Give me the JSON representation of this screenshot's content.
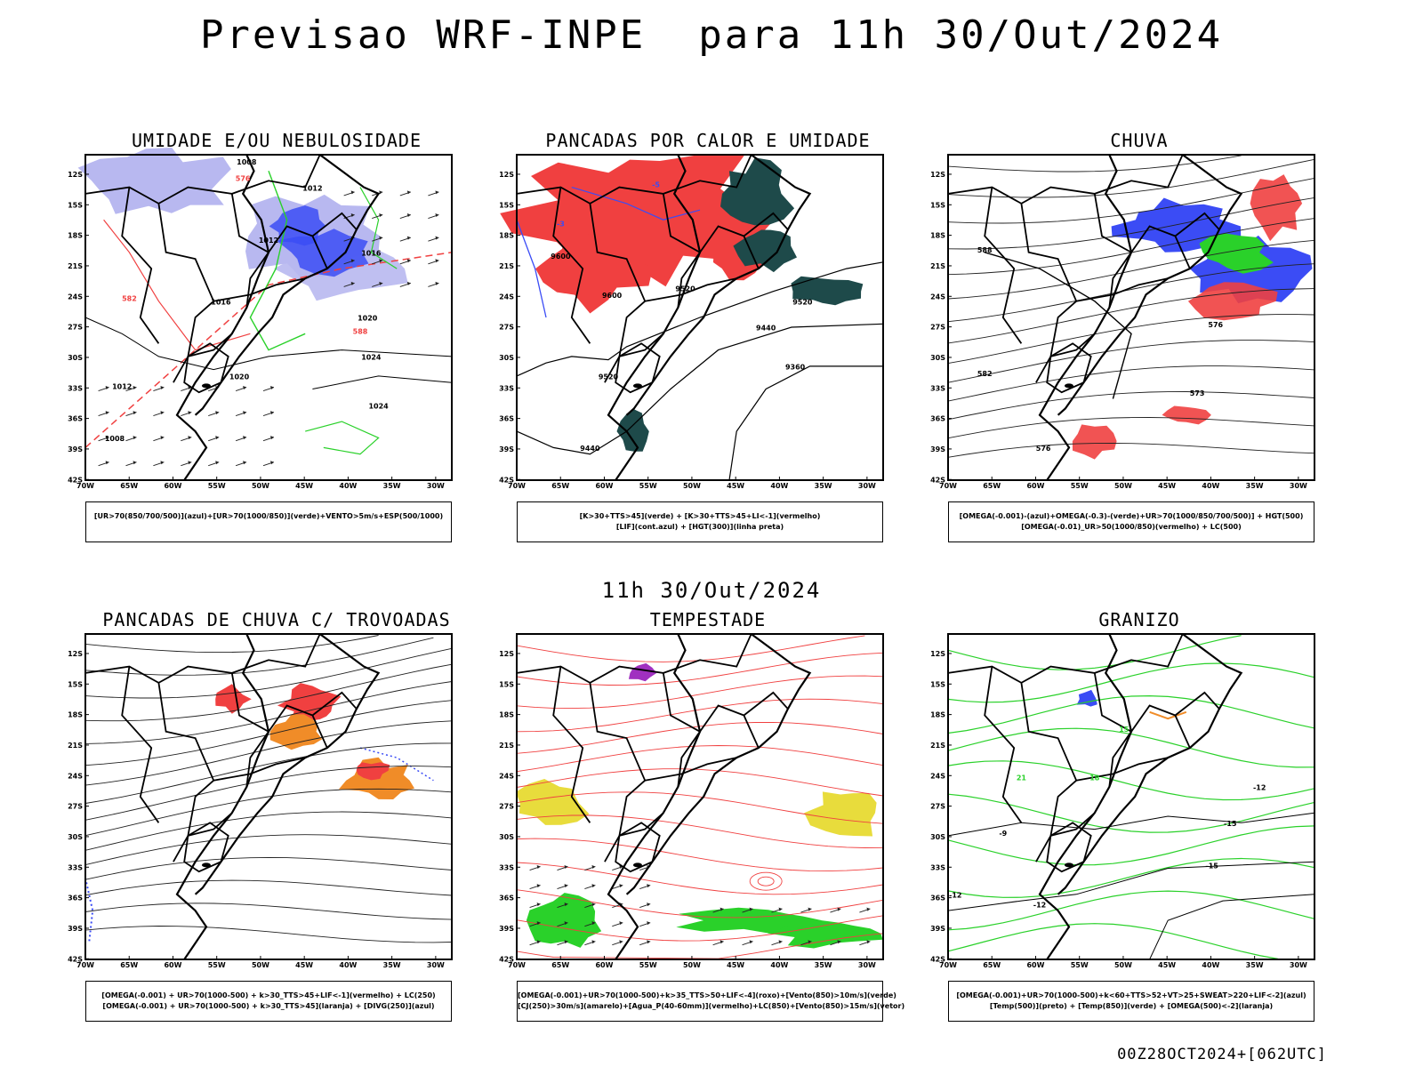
{
  "title": "Previsao WRF-INPE  para 11h 30/Out/2024",
  "mid_title": "11h 30/Out/2024",
  "footer": "00Z28OCT2024+[062UTC]",
  "axes": {
    "lat_labels": [
      "12S",
      "15S",
      "18S",
      "21S",
      "24S",
      "27S",
      "30S",
      "33S",
      "36S",
      "39S",
      "42S"
    ],
    "lon_labels": [
      "70W",
      "65W",
      "60W",
      "55W",
      "50W",
      "45W",
      "40W",
      "35W",
      "30W"
    ]
  },
  "colors": {
    "blue": "#3b4cf5",
    "lavender": "#b8b8f0",
    "green": "#2ad12a",
    "red": "#f04040",
    "darkteal": "#1e4a4a",
    "orange": "#f08c28",
    "yellow": "#e8dc3c",
    "purple": "#a030c0"
  },
  "panels": [
    {
      "title": "UMIDADE E/OU NEBULOSIDADE",
      "legend": [
        "[UR>70(850/700/500)](azul)+[UR>70(1000/850)](verde)+VENTO>5m/s+ESP(500/1000)"
      ],
      "labels": [
        "1008",
        "1012",
        "1012",
        "1016",
        "1016",
        "1020",
        "1024",
        "1024",
        "1020",
        "1012",
        "1008",
        "576",
        "582",
        "588"
      ]
    },
    {
      "title": "PANCADAS POR CALOR E UMIDADE",
      "legend": [
        "[K>30+TTS>45](verde) + [K>30+TTS>45+LI<-1](vermelho)",
        "[LIF](cont.azul) + [HGT(300)](linha preta)"
      ],
      "labels": [
        "9600",
        "9600",
        "9520",
        "9520",
        "9440",
        "9360",
        "9520",
        "9440",
        "-5",
        "-3"
      ]
    },
    {
      "title": "CHUVA",
      "legend": [
        "[OMEGA(-0.001)-(azul)+OMEGA(-0.3)-(verde)+UR>70(1000/850/700/500)] + HGT(500)",
        "[OMEGA(-0.01)_UR>50(1000/850)(vermelho) + LC(500)"
      ],
      "labels": [
        "582",
        "576",
        "576",
        "573",
        "588"
      ]
    },
    {
      "title": "PANCADAS DE CHUVA C/ TROVOADAS",
      "legend": [
        "[OMEGA(-0.001) + UR>70(1000-500) + k>30_TTS>45+LIF<-1](vermelho) + LC(250)",
        "[OMEGA(-0.001) + UR>70(1000-500) + k>30_TTS>45](laranja) + [DIVG(250)](azul)"
      ],
      "labels": []
    },
    {
      "title": "TEMPESTADE",
      "legend": [
        "[OMEGA(-0.001)+UR>70(1000-500)+k>35_TTS>50+LIF<-4](roxo)+[Vento(850)>10m/s](verde)",
        "[CJ(250)>30m/s](amarelo)+[Agua_P(40-60mm)](vermelho)+LC(850)+[Vento(850)>15m/s](vetor)"
      ],
      "labels": []
    },
    {
      "title": "GRANIZO",
      "legend": [
        "[OMEGA(-0.001)+UR>70(1000-500)+k<60+TTS>52+VT>25+SWEAT>220+LIF<-2](azul)",
        "[Temp(500)](preto) + [Temp(850)](verde) + [OMEGA(500)<-2](laranja)"
      ],
      "labels": [
        "-9",
        "-12",
        "-15",
        "-15",
        "-12",
        "-12",
        "15",
        "18",
        "21"
      ]
    }
  ]
}
